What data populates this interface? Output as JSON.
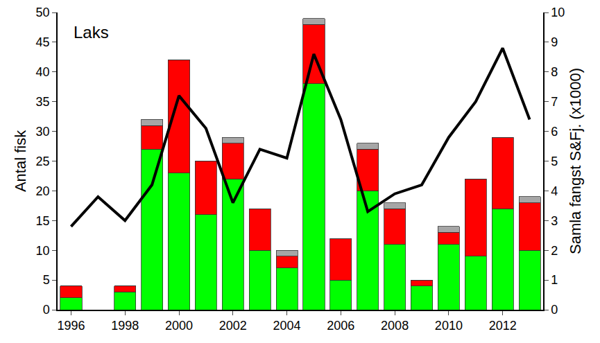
{
  "chart_data": {
    "type": "bar",
    "stacked": true,
    "annotations": [
      "Laks"
    ],
    "y_label": "Antal fisk",
    "y2_label": "Samla fangst S&Fj. (x1000)",
    "x": [
      1996,
      1997,
      1998,
      1999,
      2000,
      2001,
      2002,
      2003,
      2004,
      2005,
      2006,
      2007,
      2008,
      2009,
      2010,
      2011,
      2012,
      2013
    ],
    "xlim": [
      1995.5,
      2013.5
    ],
    "xticks": [
      1996,
      1998,
      2000,
      2002,
      2004,
      2006,
      2008,
      2010,
      2012
    ],
    "ylim": [
      0,
      50
    ],
    "yticks": [
      0,
      5,
      10,
      15,
      20,
      25,
      30,
      35,
      40,
      45,
      50
    ],
    "y2lim": [
      0,
      10
    ],
    "y2ticks": [
      0,
      1,
      2,
      3,
      4,
      5,
      6,
      7,
      8,
      9,
      10
    ],
    "series": [
      {
        "type": "bar",
        "color": "#00ff00",
        "values": [
          2,
          0,
          3,
          27,
          23,
          16,
          22,
          10,
          7,
          38,
          5,
          20,
          11,
          4,
          11,
          9,
          17,
          10
        ]
      },
      {
        "type": "bar",
        "color": "#ff0000",
        "values": [
          2,
          0,
          1,
          4,
          19,
          9,
          6,
          7,
          2,
          10,
          7,
          7,
          6,
          1,
          2,
          13,
          12,
          8
        ]
      },
      {
        "type": "bar",
        "color": "#a6a6a6",
        "values": [
          0,
          0,
          0,
          1,
          0,
          0,
          1,
          0,
          1,
          1,
          0,
          1,
          1,
          0,
          1,
          0,
          0,
          1
        ]
      },
      {
        "type": "line",
        "axis": "y2",
        "color": "#000000",
        "values": [
          2.8,
          3.8,
          3.0,
          4.2,
          7.2,
          6.1,
          3.6,
          5.4,
          5.1,
          8.6,
          6.4,
          3.3,
          3.9,
          4.2,
          5.8,
          7.0,
          8.8,
          6.4
        ]
      }
    ]
  }
}
